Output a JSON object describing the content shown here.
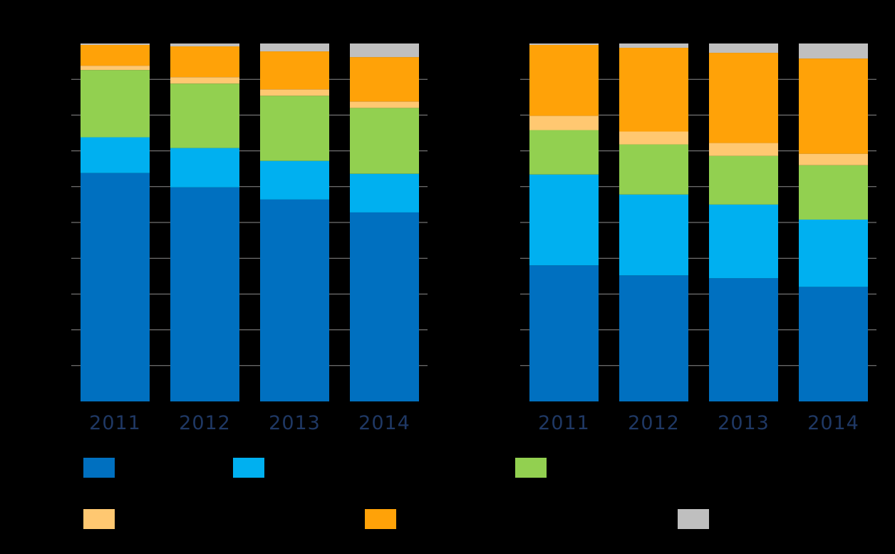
{
  "chart_data": {
    "type": "bar",
    "stacked": true,
    "normalized": true,
    "ylim": [
      0,
      1
    ],
    "grid": true,
    "gridline_color": "#8C8C8C",
    "legend_placement": "bottom",
    "panels": [
      {
        "categories": [
          "2011",
          "2012",
          "2013",
          "2014"
        ],
        "series_values": [
          [
            0.638,
            0.598,
            0.564,
            0.528
          ],
          [
            0.1,
            0.11,
            0.108,
            0.108
          ],
          [
            0.188,
            0.18,
            0.182,
            0.184
          ],
          [
            0.012,
            0.018,
            0.018,
            0.018
          ],
          [
            0.058,
            0.086,
            0.106,
            0.124
          ],
          [
            0.004,
            0.008,
            0.022,
            0.038
          ]
        ]
      },
      {
        "categories": [
          "2011",
          "2012",
          "2013",
          "2014"
        ],
        "series_values": [
          [
            0.38,
            0.352,
            0.344,
            0.32
          ],
          [
            0.254,
            0.226,
            0.206,
            0.188
          ],
          [
            0.124,
            0.14,
            0.136,
            0.152
          ],
          [
            0.04,
            0.036,
            0.036,
            0.032
          ],
          [
            0.198,
            0.234,
            0.252,
            0.266
          ],
          [
            0.004,
            0.012,
            0.026,
            0.042
          ]
        ]
      }
    ],
    "series": [
      {
        "color": "#0070C0"
      },
      {
        "color": "#00B0F0"
      },
      {
        "color": "#92D050"
      },
      {
        "color": "#FFC871"
      },
      {
        "color": "#FFA208"
      },
      {
        "color": "#BFBFBF"
      }
    ]
  }
}
